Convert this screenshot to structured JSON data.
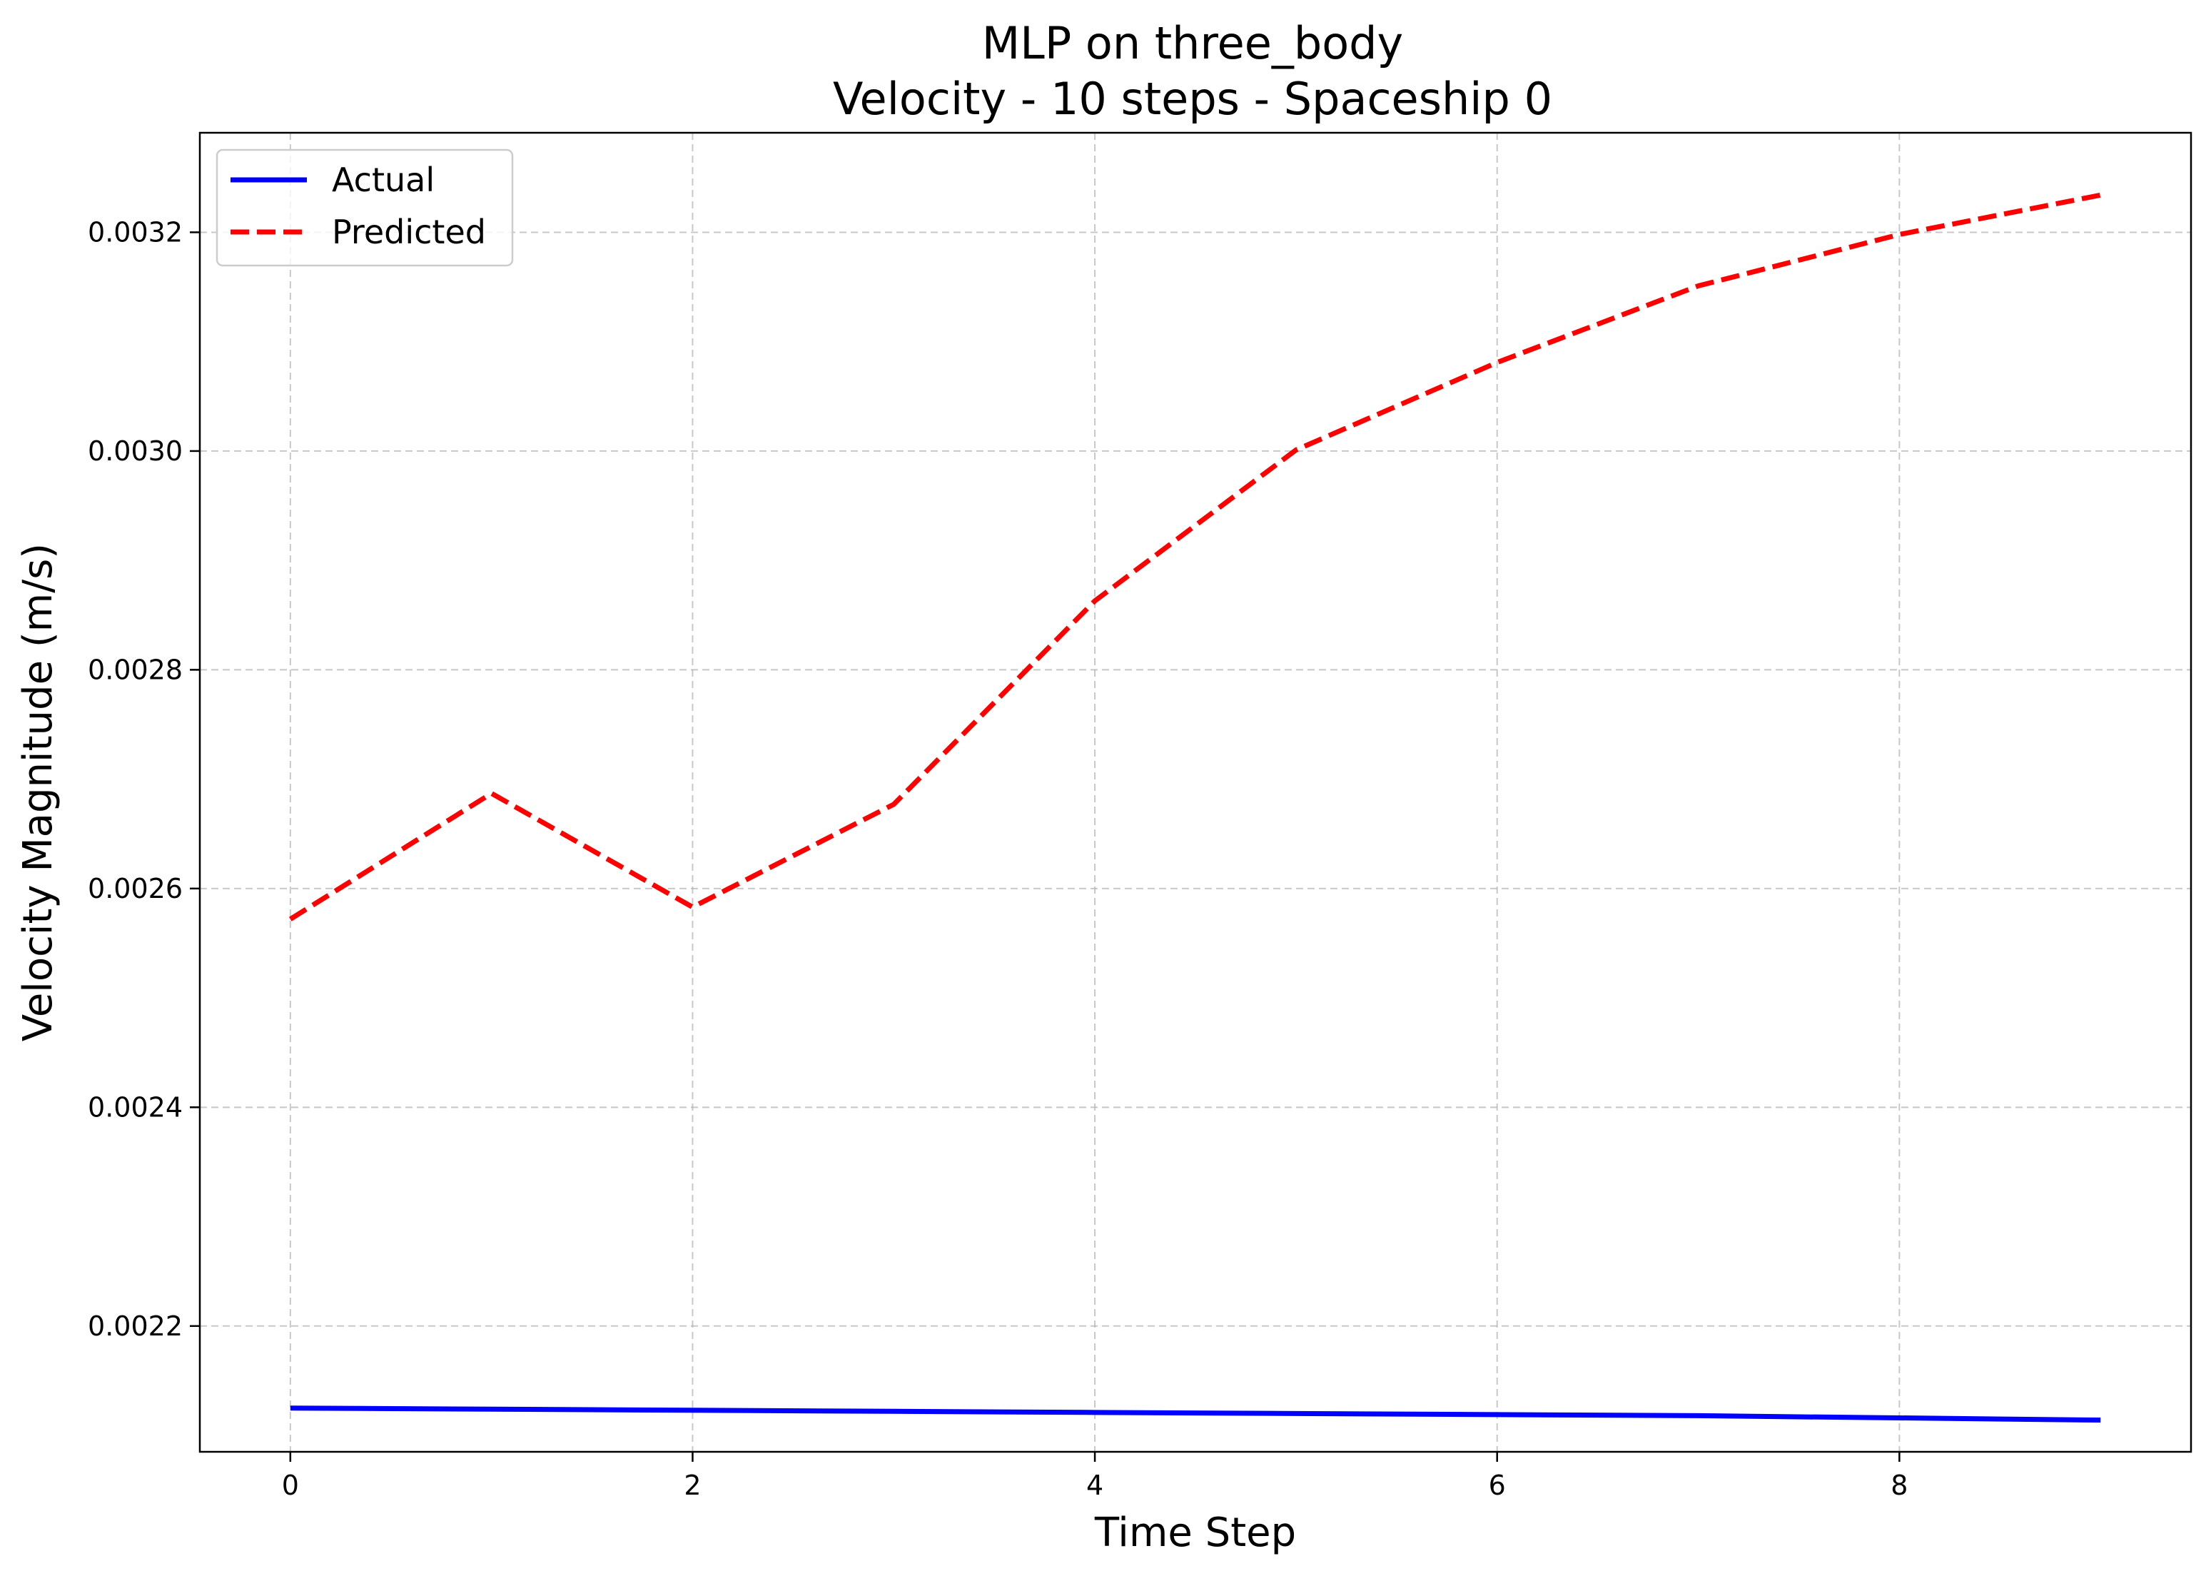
{
  "chart_data": {
    "type": "line",
    "title": "MLP on three_body",
    "subtitle": "Velocity - 10 steps - Spaceship 0",
    "xlabel": "Time Step",
    "ylabel": "Velocity Magnitude (m/s)",
    "xlim": [
      -0.45,
      9.45
    ],
    "ylim": [
      0.002085,
      0.003291
    ],
    "xticks": [
      0,
      2,
      4,
      6,
      8
    ],
    "xtick_labels": [
      "0",
      "2",
      "4",
      "6",
      "8"
    ],
    "yticks": [
      0.0022,
      0.0024,
      0.0026,
      0.0028,
      0.003,
      0.0032
    ],
    "ytick_labels": [
      "0.0022",
      "0.0024",
      "0.0026",
      "0.0028",
      "0.0030",
      "0.0032"
    ],
    "grid": true,
    "legend_position": "upper-left",
    "x": [
      0,
      1,
      2,
      3,
      4,
      5,
      6,
      7,
      8,
      9
    ],
    "series": [
      {
        "name": "Actual",
        "color": "#0000ff",
        "style": "solid",
        "values": [
          0.002125,
          0.002124,
          0.002123,
          0.002122,
          0.002121,
          0.00212,
          0.002119,
          0.002118,
          0.002116,
          0.002114
        ]
      },
      {
        "name": "Predicted",
        "color": "#ff0000",
        "style": "dashed",
        "values": [
          0.002572,
          0.002687,
          0.002583,
          0.002677,
          0.002863,
          0.003001,
          0.003081,
          0.003151,
          0.003198,
          0.003234
        ]
      }
    ]
  }
}
